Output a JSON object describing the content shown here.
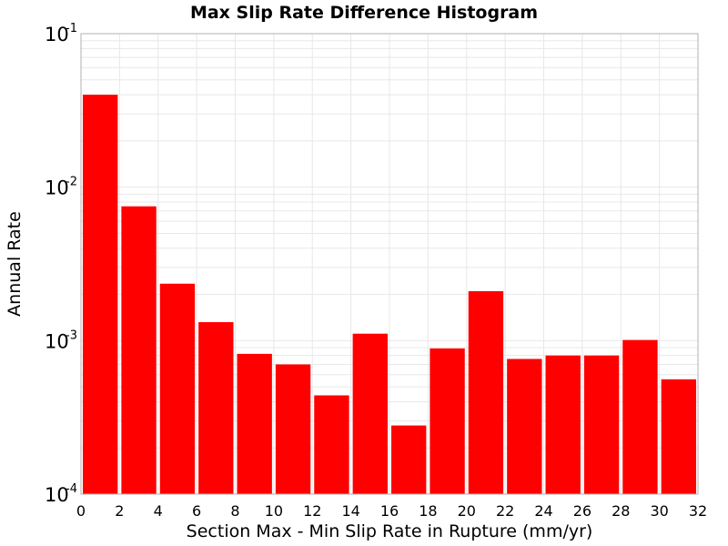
{
  "chart_data": {
    "type": "bar",
    "title": "Max Slip Rate Difference Histogram",
    "xlabel": "Section Max - Min Slip Rate in Rupture (mm/yr)",
    "ylabel": "Annual Rate",
    "x_bin_width": 2,
    "x_bin_starts": [
      0,
      2,
      4,
      6,
      8,
      10,
      12,
      14,
      16,
      18,
      20,
      22,
      24,
      26,
      28,
      30
    ],
    "values": [
      0.04,
      0.0075,
      0.00235,
      0.00132,
      0.00082,
      0.0007,
      0.00044,
      0.00111,
      0.00028,
      0.00089,
      0.0021,
      0.00076,
      0.0008,
      0.0008,
      0.00101,
      0.00056
    ],
    "xlim": [
      0,
      32
    ],
    "ylim": [
      0.0001,
      0.1
    ],
    "y_scale": "log",
    "x_ticks": [
      "0",
      "2",
      "4",
      "6",
      "8",
      "10",
      "12",
      "14",
      "16",
      "18",
      "20",
      "22",
      "24",
      "26",
      "28",
      "30",
      "32"
    ],
    "y_ticks": [
      {
        "base": "10",
        "exp": "-1",
        "value": 0.1
      },
      {
        "base": "10",
        "exp": "-2",
        "value": 0.01
      },
      {
        "base": "10",
        "exp": "-3",
        "value": 0.001
      },
      {
        "base": "10",
        "exp": "-4",
        "value": 0.0001
      }
    ],
    "bar_color": "#ff0000",
    "grid": true,
    "grid_color": "#e8e8e8",
    "frame_color": "#b0b0b0"
  }
}
